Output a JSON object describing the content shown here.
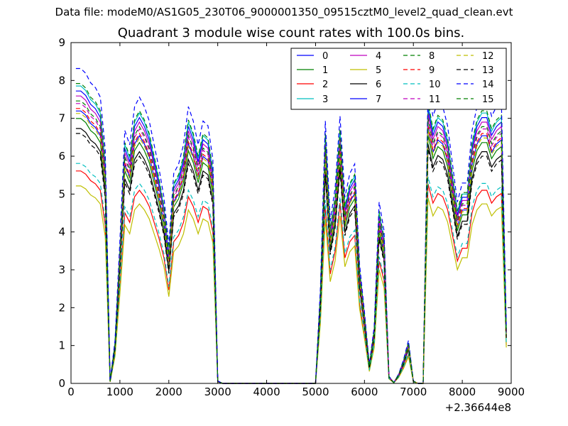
{
  "figure": {
    "suptitle": "Data file: modeM0/AS1G05_230T06_9000001350_09515cztM0_level2_quad_clean.evt"
  },
  "chart_data": {
    "type": "line",
    "title": "Quadrant 3 module wise count rates with 100.0s bins.",
    "xlabel": "",
    "ylabel": "",
    "xlim": [
      0,
      9000
    ],
    "ylim": [
      0,
      9
    ],
    "x_offset_label": "+2.36644e8",
    "xticks": [
      0,
      1000,
      2000,
      3000,
      4000,
      5000,
      6000,
      7000,
      8000,
      9000
    ],
    "yticks": [
      0,
      1,
      2,
      3,
      4,
      5,
      6,
      7,
      8,
      9
    ],
    "grid": false,
    "legend_position": "upper right",
    "legend_columns": 4,
    "x": [
      100,
      200,
      300,
      400,
      500,
      600,
      700,
      800,
      900,
      1000,
      1100,
      1200,
      1300,
      1400,
      1500,
      1600,
      1700,
      1800,
      1900,
      2000,
      2100,
      2200,
      2300,
      2400,
      2500,
      2600,
      2700,
      2800,
      2900,
      3000,
      3100,
      3200,
      3300,
      3400,
      3500,
      3600,
      3700,
      3800,
      3900,
      4000,
      4100,
      4200,
      4300,
      4400,
      4500,
      4600,
      4700,
      4800,
      4900,
      5000,
      5100,
      5200,
      5300,
      5400,
      5500,
      5600,
      5700,
      5800,
      5900,
      6000,
      6100,
      6200,
      6300,
      6400,
      6500,
      6600,
      6700,
      6800,
      6900,
      7000,
      7100,
      7200,
      7300,
      7400,
      7500,
      7600,
      7700,
      7800,
      7900,
      8000,
      8100,
      8200,
      8300,
      8400,
      8500,
      8600,
      8700,
      8800,
      8900
    ],
    "series": [
      {
        "name": "0",
        "color": "#0000ff",
        "dash": "solid",
        "base": "A",
        "scale": 1.17
      },
      {
        "name": "1",
        "color": "#008000",
        "dash": "solid",
        "base": "A",
        "scale": 1.06
      },
      {
        "name": "2",
        "color": "#ff0000",
        "dash": "solid",
        "base": "A",
        "scale": 0.85
      },
      {
        "name": "3",
        "color": "#00bfbf",
        "dash": "solid",
        "base": "A",
        "scale": 1.19
      },
      {
        "name": "4",
        "color": "#bf00bf",
        "dash": "solid",
        "base": "A",
        "scale": 1.15
      },
      {
        "name": "5",
        "color": "#bfbf00",
        "dash": "solid",
        "base": "A",
        "scale": 0.79
      },
      {
        "name": "6",
        "color": "#000000",
        "dash": "solid",
        "base": "A",
        "scale": 1.02
      },
      {
        "name": "7",
        "color": "#0000ff",
        "dash": "solid",
        "base": "A",
        "scale": 1.09
      },
      {
        "name": "8",
        "color": "#008000",
        "dash": "dashed",
        "base": "A",
        "scale": 1.2
      },
      {
        "name": "9",
        "color": "#ff0000",
        "dash": "dashed",
        "base": "A",
        "scale": 1.1
      },
      {
        "name": "10",
        "color": "#00bfbf",
        "dash": "dashed",
        "base": "A",
        "scale": 0.88
      },
      {
        "name": "11",
        "color": "#bf00bf",
        "dash": "dashed",
        "base": "A",
        "scale": 1.12
      },
      {
        "name": "12",
        "color": "#bfbf00",
        "dash": "dashed",
        "base": "A",
        "scale": 1.08
      },
      {
        "name": "13",
        "color": "#000000",
        "dash": "dashed",
        "base": "A",
        "scale": 1.0
      },
      {
        "name": "14",
        "color": "#0000ff",
        "dash": "dashed",
        "base": "A",
        "scale": 1.26
      },
      {
        "name": "15",
        "color": "#008000",
        "dash": "dashed",
        "base": "A",
        "scale": 1.13
      }
    ],
    "base_profile_A": [
      6.6,
      6.6,
      6.5,
      6.3,
      6.2,
      6.0,
      4.9,
      0.05,
      0.9,
      3.0,
      5.3,
      5.0,
      5.8,
      6.0,
      5.8,
      5.5,
      5.0,
      4.5,
      3.9,
      2.9,
      4.4,
      4.6,
      5.0,
      5.8,
      5.5,
      5.0,
      5.5,
      5.4,
      4.7,
      0.05,
      0.0,
      0.0,
      0.0,
      0.0,
      0.0,
      0.0,
      0.0,
      0.0,
      0.0,
      0.0,
      0.0,
      0.0,
      0.0,
      0.0,
      0.0,
      0.0,
      0.0,
      0.0,
      0.0,
      0.0,
      2.0,
      5.5,
      3.4,
      4.1,
      5.6,
      3.9,
      4.4,
      4.6,
      2.5,
      1.5,
      0.4,
      1.2,
      3.8,
      3.2,
      0.15,
      0.02,
      0.2,
      0.5,
      0.9,
      0.05,
      0.0,
      0.0,
      6.2,
      5.6,
      5.9,
      5.8,
      5.4,
      4.6,
      3.8,
      4.2,
      4.2,
      5.3,
      5.8,
      6.0,
      6.0,
      5.6,
      5.8,
      5.9,
      1.2
    ]
  }
}
